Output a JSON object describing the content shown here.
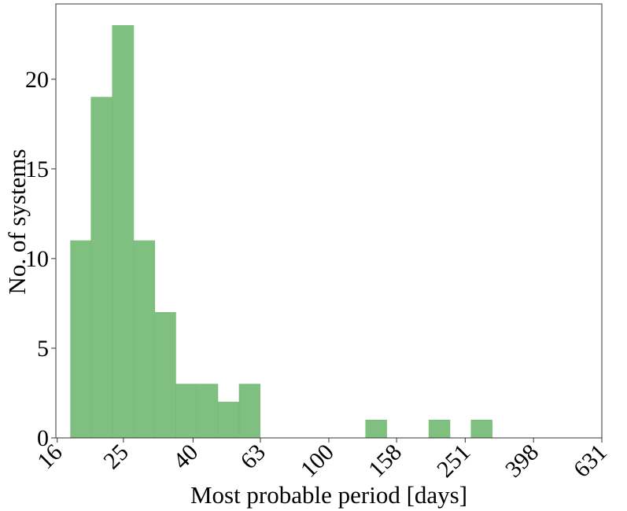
{
  "chart_data": {
    "type": "bar",
    "title": "",
    "xlabel": "Most probable period [days]",
    "ylabel": "No. of systems",
    "x_scale": "log",
    "xlim": [
      15.85,
      631
    ],
    "ylim": [
      0,
      24.2
    ],
    "xticks": [
      16,
      25,
      40,
      63,
      100,
      158,
      251,
      398,
      631
    ],
    "yticks": [
      0,
      5,
      10,
      15,
      20
    ],
    "grid": false,
    "bar_color": "#7fbf7f",
    "bins": [
      {
        "x_start": 17.5,
        "x_end": 20.1,
        "value": 11
      },
      {
        "x_start": 20.1,
        "x_end": 23.2,
        "value": 19
      },
      {
        "x_start": 23.2,
        "x_end": 26.8,
        "value": 23
      },
      {
        "x_start": 26.8,
        "x_end": 30.9,
        "value": 11
      },
      {
        "x_start": 30.9,
        "x_end": 35.6,
        "value": 7
      },
      {
        "x_start": 35.6,
        "x_end": 41.0,
        "value": 3
      },
      {
        "x_start": 41.0,
        "x_end": 47.3,
        "value": 3
      },
      {
        "x_start": 47.3,
        "x_end": 54.6,
        "value": 2
      },
      {
        "x_start": 54.6,
        "x_end": 62.9,
        "value": 3
      },
      {
        "x_start": 62.9,
        "x_end": 72.5,
        "value": 0
      },
      {
        "x_start": 72.5,
        "x_end": 83.6,
        "value": 0
      },
      {
        "x_start": 83.6,
        "x_end": 96.4,
        "value": 0
      },
      {
        "x_start": 96.4,
        "x_end": 111.2,
        "value": 0
      },
      {
        "x_start": 111.2,
        "x_end": 128.2,
        "value": 0
      },
      {
        "x_start": 128.2,
        "x_end": 147.8,
        "value": 1
      },
      {
        "x_start": 147.8,
        "x_end": 170.4,
        "value": 0
      },
      {
        "x_start": 170.4,
        "x_end": 196.4,
        "value": 0
      },
      {
        "x_start": 196.4,
        "x_end": 226.5,
        "value": 1
      },
      {
        "x_start": 226.5,
        "x_end": 261.1,
        "value": 0
      },
      {
        "x_start": 261.1,
        "x_end": 301.0,
        "value": 1
      }
    ]
  }
}
